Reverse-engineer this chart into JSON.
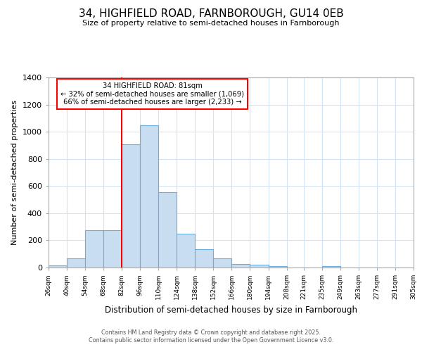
{
  "title1": "34, HIGHFIELD ROAD, FARNBOROUGH, GU14 0EB",
  "title2": "Size of property relative to semi-detached houses in Farnborough",
  "xlabel": "Distribution of semi-detached houses by size in Farnborough",
  "ylabel": "Number of semi-detached properties",
  "bins": [
    26,
    40,
    54,
    68,
    82,
    96,
    110,
    124,
    138,
    152,
    166,
    180,
    194,
    208,
    221,
    235,
    249,
    263,
    277,
    291,
    305
  ],
  "counts": [
    15,
    65,
    275,
    275,
    905,
    1045,
    555,
    250,
    135,
    65,
    25,
    20,
    10,
    0,
    0,
    10,
    0,
    0,
    0,
    0
  ],
  "bar_color": "#c9ddf0",
  "bar_edge_color": "#6aaee0",
  "red_line_x": 82,
  "annotation_title": "34 HIGHFIELD ROAD: 81sqm",
  "annotation_line1": "← 32% of semi-detached houses are smaller (1,069)",
  "annotation_line2": "66% of semi-detached houses are larger (2,233) →",
  "footer1": "Contains HM Land Registry data © Crown copyright and database right 2025.",
  "footer2": "Contains public sector information licensed under the Open Government Licence v3.0.",
  "yticks": [
    0,
    200,
    400,
    600,
    800,
    1000,
    1200,
    1400
  ],
  "ylim": [
    0,
    1400
  ],
  "background_color": "#ffffff",
  "plot_background_color": "#ffffff",
  "grid_color": "#d0e4f5",
  "tick_labels": [
    "26sqm",
    "40sqm",
    "54sqm",
    "68sqm",
    "82sqm",
    "96sqm",
    "110sqm",
    "124sqm",
    "138sqm",
    "152sqm",
    "166sqm",
    "180sqm",
    "194sqm",
    "208sqm",
    "221sqm",
    "235sqm",
    "249sqm",
    "263sqm",
    "277sqm",
    "291sqm",
    "305sqm"
  ]
}
